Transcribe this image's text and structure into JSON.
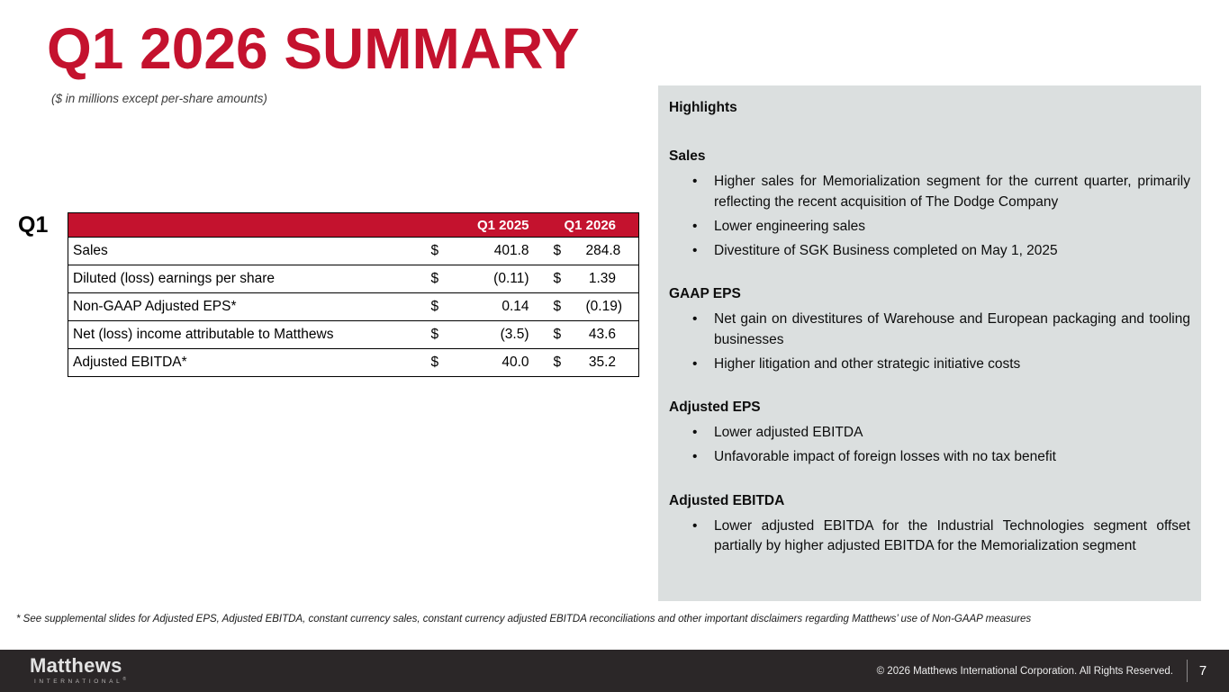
{
  "slide": {
    "title": "Q1 2026 SUMMARY",
    "subtitle": "($ in millions except per-share amounts)",
    "footnote": "* See supplemental slides for Adjusted EPS, Adjusted EBITDA, constant currency sales, constant currency adjusted EBITDA reconciliations and other important disclaimers regarding Matthews’ use of Non-GAAP measures"
  },
  "table": {
    "quarter_label": "Q1",
    "currency": "$",
    "columns": [
      "Q1 2025",
      "Q1 2026"
    ],
    "rows": [
      {
        "label": "Sales",
        "q1_2025": "401.8",
        "q1_2026": "284.8"
      },
      {
        "label": "Diluted (loss) earnings per share",
        "q1_2025": "(0.11)",
        "q1_2026": "1.39"
      },
      {
        "label": "Non-GAAP Adjusted EPS*",
        "q1_2025": "0.14",
        "q1_2026": "(0.19)"
      },
      {
        "label": "Net (loss) income attributable to Matthews",
        "q1_2025": "(3.5)",
        "q1_2026": "43.6"
      },
      {
        "label": "Adjusted EBITDA*",
        "q1_2025": "40.0",
        "q1_2026": "35.2"
      }
    ]
  },
  "highlights": {
    "title": "Highlights",
    "sections": [
      {
        "heading": "Sales",
        "bullets": [
          "Higher sales for Memorialization segment for the current quarter, primarily reflecting the recent acquisition of The Dodge Company",
          "Lower engineering sales",
          "Divestiture of SGK Business completed on May 1, 2025"
        ]
      },
      {
        "heading": "GAAP EPS",
        "bullets": [
          "Net gain on divestitures of Warehouse and European packaging and tooling businesses",
          "Higher litigation and other strategic initiative costs"
        ]
      },
      {
        "heading": "Adjusted EPS",
        "bullets": [
          "Lower adjusted EBITDA",
          "Unfavorable impact of foreign losses with no tax benefit"
        ]
      },
      {
        "heading": "Adjusted EBITDA",
        "bullets": [
          "Lower adjusted EBITDA for the Industrial Technologies segment offset partially by higher adjusted EBITDA for the Memorialization segment"
        ]
      }
    ]
  },
  "footer": {
    "logo_primary": "Matthews",
    "logo_secondary": "INTERNATIONAL",
    "copyright": "© 2026 Matthews International Corporation. All Rights Reserved.",
    "page_number": "7"
  },
  "colors": {
    "brand_red": "#C4122E",
    "panel_gray": "#DBDFDF",
    "footer_dark": "#2B2728"
  }
}
